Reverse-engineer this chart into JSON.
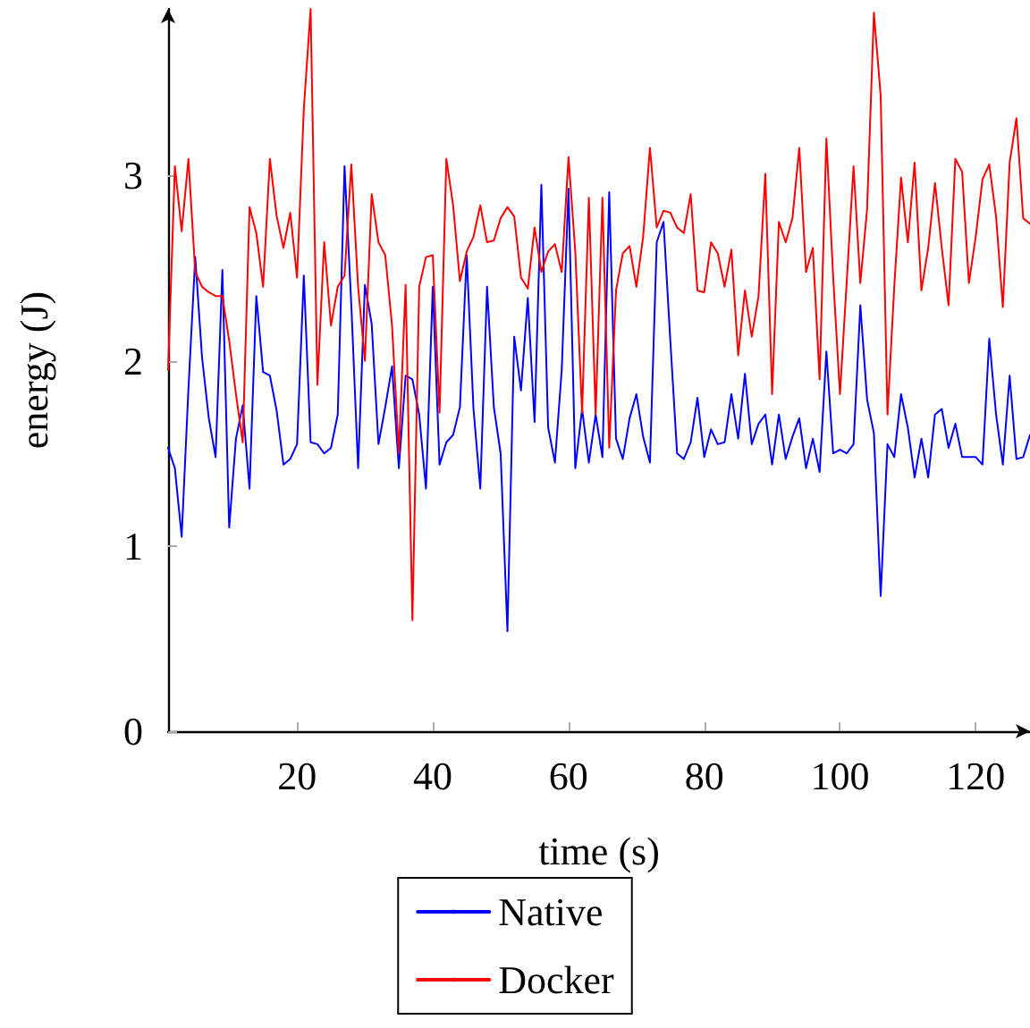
{
  "chart_data": {
    "type": "line",
    "xlabel": "time (s)",
    "ylabel": "energy (J)",
    "x": [
      1,
      2,
      3,
      4,
      5,
      6,
      7,
      8,
      9,
      10,
      11,
      12,
      13,
      14,
      15,
      16,
      17,
      18,
      19,
      20,
      21,
      22,
      23,
      24,
      25,
      26,
      27,
      28,
      29,
      30,
      31,
      32,
      33,
      34,
      35,
      36,
      37,
      38,
      39,
      40,
      41,
      42,
      43,
      44,
      45,
      46,
      47,
      48,
      49,
      50,
      51,
      52,
      53,
      54,
      55,
      56,
      57,
      58,
      59,
      60,
      61,
      62,
      63,
      64,
      65,
      66,
      67,
      68,
      69,
      70,
      71,
      72,
      73,
      74,
      75,
      76,
      77,
      78,
      79,
      80,
      81,
      82,
      83,
      84,
      85,
      86,
      87,
      88,
      89,
      90,
      91,
      92,
      93,
      94,
      95,
      96,
      97,
      98,
      99,
      100,
      101,
      102,
      103,
      104,
      105,
      106,
      107,
      108,
      109,
      110,
      111,
      112,
      113,
      114,
      115,
      116,
      117,
      118,
      119,
      120,
      121,
      122,
      123,
      124,
      125,
      126,
      127,
      128
    ],
    "series": [
      {
        "name": "Native",
        "color": "#0000ff",
        "values": [
          1.53,
          1.42,
          1.05,
          1.85,
          2.56,
          2.02,
          1.69,
          1.48,
          2.49,
          1.1,
          1.58,
          1.76,
          1.31,
          2.35,
          1.94,
          1.92,
          1.73,
          1.44,
          1.47,
          1.55,
          2.46,
          1.56,
          1.55,
          1.5,
          1.53,
          1.71,
          3.05,
          2.3,
          1.42,
          2.41,
          2.2,
          1.55,
          1.75,
          1.97,
          1.42,
          1.92,
          1.9,
          1.71,
          1.31,
          2.4,
          1.44,
          1.56,
          1.6,
          1.75,
          2.57,
          1.74,
          1.31,
          2.4,
          1.75,
          1.5,
          0.54,
          2.13,
          1.84,
          2.34,
          1.67,
          2.95,
          1.64,
          1.45,
          1.95,
          2.93,
          1.42,
          1.74,
          1.45,
          1.71,
          1.48,
          2.91,
          1.58,
          1.47,
          1.69,
          1.82,
          1.59,
          1.45,
          2.64,
          2.75,
          2.11,
          1.5,
          1.47,
          1.56,
          1.8,
          1.48,
          1.63,
          1.55,
          1.56,
          1.82,
          1.58,
          1.93,
          1.55,
          1.66,
          1.71,
          1.44,
          1.71,
          1.47,
          1.59,
          1.69,
          1.42,
          1.58,
          1.4,
          2.05,
          1.5,
          1.52,
          1.5,
          1.55,
          2.3,
          1.79,
          1.61,
          0.73,
          1.55,
          1.48,
          1.82,
          1.64,
          1.37,
          1.58,
          1.37,
          1.71,
          1.74,
          1.53,
          1.66,
          1.48,
          1.48,
          1.48,
          1.44,
          2.12,
          1.71,
          1.44,
          1.92,
          1.47,
          1.48,
          1.6
        ]
      },
      {
        "name": "Docker",
        "color": "#ff0000",
        "values": [
          1.95,
          3.05,
          2.7,
          3.09,
          2.48,
          2.4,
          2.37,
          2.35,
          2.35,
          2.11,
          1.82,
          1.56,
          2.83,
          2.69,
          2.4,
          3.09,
          2.78,
          2.61,
          2.8,
          2.45,
          3.36,
          3.9,
          1.87,
          2.64,
          2.19,
          2.4,
          2.46,
          3.06,
          2.4,
          2.0,
          2.9,
          2.64,
          2.57,
          2.19,
          1.5,
          2.41,
          0.6,
          2.4,
          2.56,
          2.57,
          1.72,
          3.09,
          2.84,
          2.43,
          2.59,
          2.67,
          2.84,
          2.64,
          2.65,
          2.77,
          2.83,
          2.78,
          2.45,
          2.39,
          2.72,
          2.48,
          2.59,
          2.63,
          2.48,
          3.1,
          2.59,
          1.72,
          2.88,
          1.71,
          2.88,
          1.53,
          2.38,
          2.58,
          2.62,
          2.4,
          2.67,
          3.15,
          2.72,
          2.81,
          2.8,
          2.72,
          2.69,
          2.9,
          2.38,
          2.37,
          2.64,
          2.58,
          2.4,
          2.6,
          2.03,
          2.38,
          2.13,
          2.35,
          3.01,
          1.82,
          2.75,
          2.64,
          2.77,
          3.15,
          2.48,
          2.61,
          1.9,
          3.2,
          2.45,
          1.82,
          2.43,
          3.05,
          2.42,
          2.82,
          3.88,
          3.43,
          1.71,
          2.4,
          2.99,
          2.64,
          3.07,
          2.38,
          2.61,
          2.96,
          2.61,
          2.3,
          3.09,
          3.02,
          2.42,
          2.67,
          2.98,
          3.06,
          2.78,
          2.29,
          3.07,
          3.31,
          2.77,
          2.74
        ]
      }
    ],
    "xlim": [
      1,
      128
    ],
    "xticks": [
      20,
      40,
      60,
      80,
      100,
      120
    ],
    "ylim": [
      0,
      3.9
    ],
    "yticks": [
      0,
      1,
      2,
      3
    ],
    "grid": false,
    "legend": "bottom",
    "marker": "none",
    "line_style": "solid"
  }
}
